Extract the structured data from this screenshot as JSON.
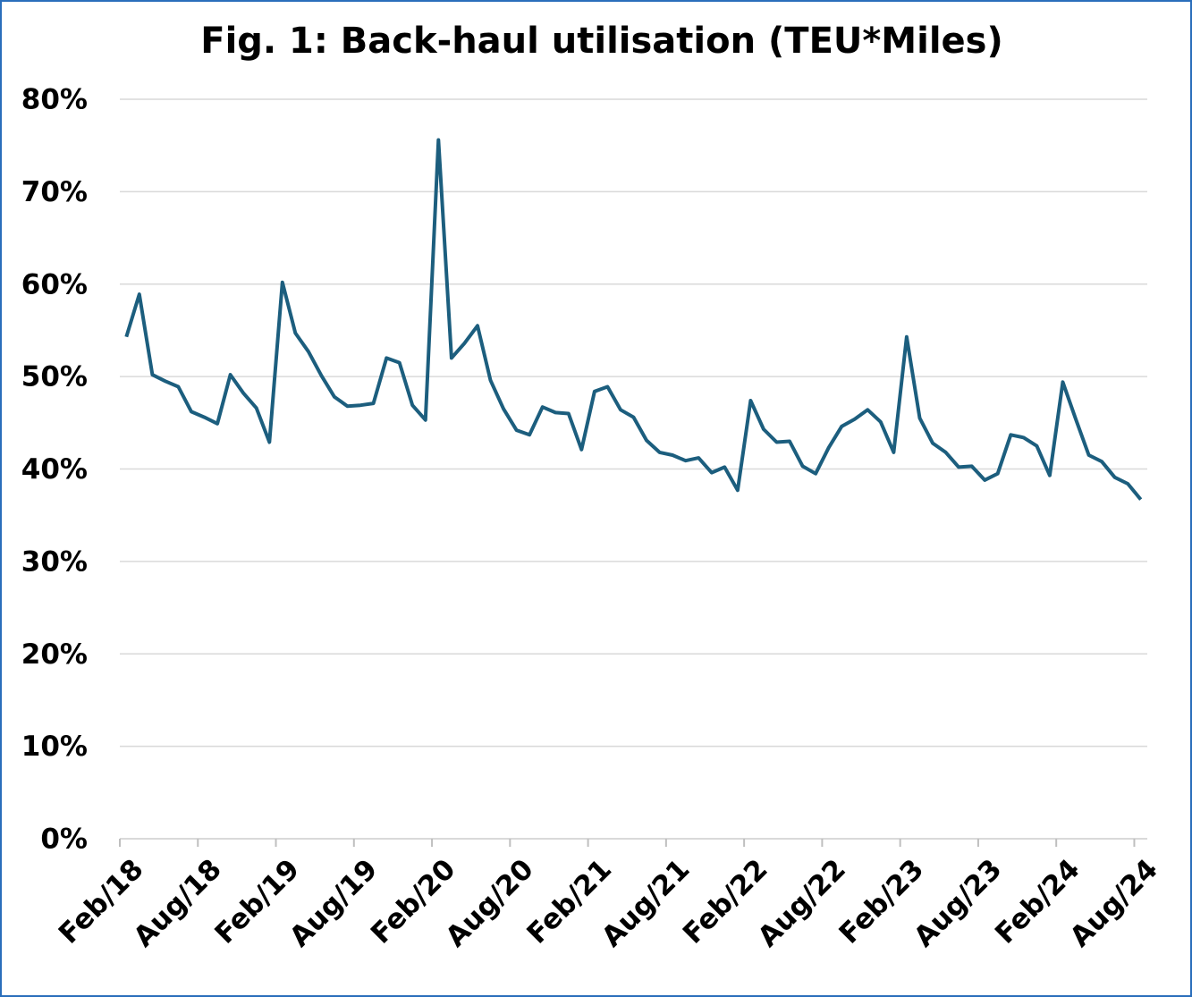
{
  "chart_data": {
    "type": "line",
    "title": "Fig. 1: Back-haul utilisation (TEU*Miles)",
    "categories": [
      "Feb/18",
      null,
      null,
      null,
      null,
      null,
      "Aug/18",
      null,
      null,
      null,
      null,
      null,
      "Feb/19",
      null,
      null,
      null,
      null,
      null,
      "Aug/19",
      null,
      null,
      null,
      null,
      null,
      "Feb/20",
      null,
      null,
      null,
      null,
      null,
      "Aug/20",
      null,
      null,
      null,
      null,
      null,
      "Feb/21",
      null,
      null,
      null,
      null,
      null,
      "Aug/21",
      null,
      null,
      null,
      null,
      null,
      "Feb/22",
      null,
      null,
      null,
      null,
      null,
      "Aug/22",
      null,
      null,
      null,
      null,
      null,
      "Feb/23",
      null,
      null,
      null,
      null,
      null,
      "Aug/23",
      null,
      null,
      null,
      null,
      null,
      "Feb/24",
      null,
      null,
      null,
      null,
      null,
      "Aug/24"
    ],
    "series": [
      {
        "name": "Back-haul utilisation",
        "color": "#1c5e7e",
        "values": [
          54.3,
          58.9,
          50.2,
          49.5,
          48.9,
          46.2,
          45.6,
          44.9,
          50.2,
          48.2,
          46.6,
          42.9,
          60.2,
          54.7,
          52.7,
          50.1,
          47.8,
          46.8,
          46.9,
          47.1,
          52.0,
          51.5,
          46.9,
          45.3,
          75.6,
          52.0,
          53.6,
          55.5,
          49.6,
          46.5,
          44.2,
          43.7,
          46.7,
          46.1,
          46.0,
          42.1,
          48.4,
          48.9,
          46.4,
          45.6,
          43.1,
          41.8,
          41.5,
          40.9,
          41.2,
          39.6,
          40.2,
          37.7,
          47.4,
          44.3,
          42.9,
          43.0,
          40.3,
          39.5,
          42.3,
          44.6,
          45.4,
          46.4,
          45.1,
          41.8,
          54.3,
          45.5,
          42.8,
          41.8,
          40.2,
          40.3,
          38.8,
          39.5,
          43.7,
          43.4,
          42.5,
          39.3,
          49.4,
          45.4,
          41.5,
          40.8,
          39.1,
          38.4,
          36.7
        ]
      }
    ],
    "ylim": [
      0,
      80
    ],
    "yticks": [
      {
        "value": 0,
        "label": "0%"
      },
      {
        "value": 10,
        "label": "10%"
      },
      {
        "value": 20,
        "label": "20%"
      },
      {
        "value": 30,
        "label": "30%"
      },
      {
        "value": 40,
        "label": "40%"
      },
      {
        "value": 50,
        "label": "50%"
      },
      {
        "value": 60,
        "label": "60%"
      },
      {
        "value": 70,
        "label": "70%"
      },
      {
        "value": 80,
        "label": "80%"
      }
    ],
    "grid": true
  }
}
